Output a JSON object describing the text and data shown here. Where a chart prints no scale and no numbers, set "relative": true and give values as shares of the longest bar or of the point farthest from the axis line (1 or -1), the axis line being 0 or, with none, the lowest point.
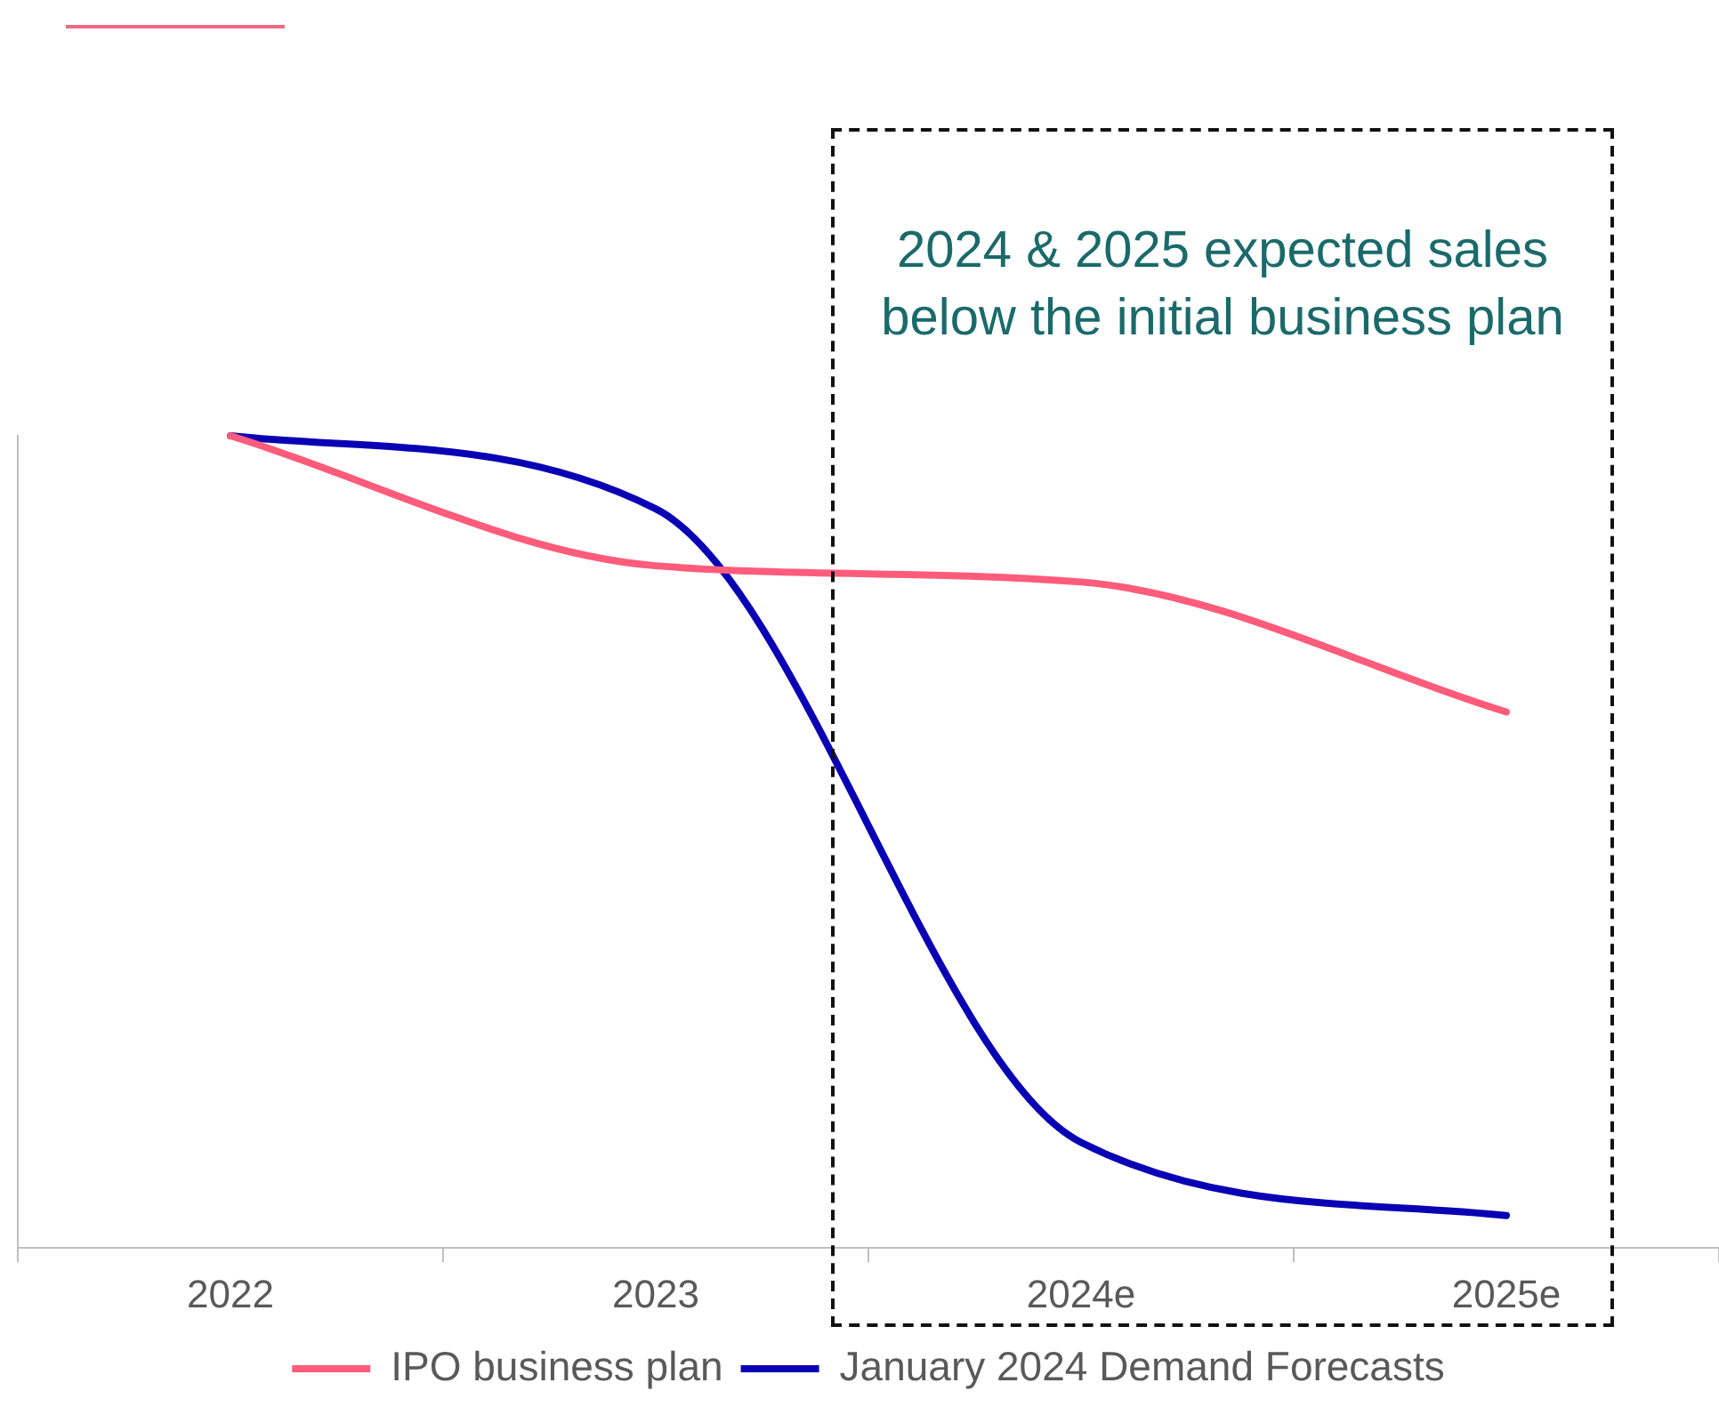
{
  "chart_data": {
    "type": "line",
    "relative": true,
    "categories": [
      "2022",
      "2023",
      "2024e",
      "2025e"
    ],
    "series": [
      {
        "name": "IPO business plan",
        "color": "#ff5c7c",
        "values": [
          1,
          0.84,
          0.82,
          0.66
        ]
      },
      {
        "name": "January 2024 Demand Forecasts",
        "color": "#0a00b4",
        "values": [
          1,
          0.91,
          0.13,
          0.04
        ]
      }
    ],
    "annotations": [
      "2024 & 2025 expected sales below the initial business plan"
    ],
    "legend": "bottom",
    "marker": "none",
    "grid": false
  }
}
